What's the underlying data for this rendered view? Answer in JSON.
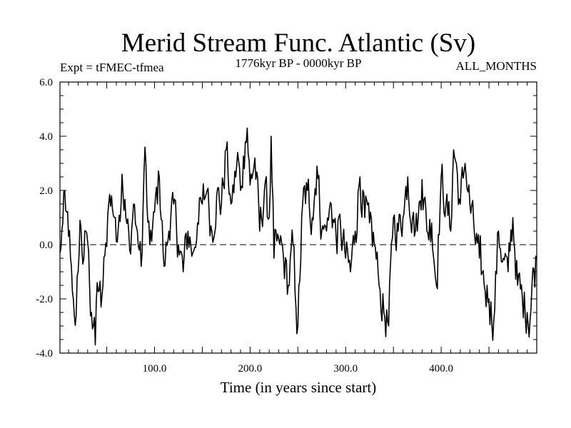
{
  "chart_data": {
    "type": "line",
    "title": "Merid Stream Func. Atlantic (Sv)",
    "left_label": "Expt = tFMEC-tfmea",
    "center_label": "1776kyr BP - 0000kyr BP",
    "right_label": "ALL_MONTHS",
    "xlabel": "Time (in years since start)",
    "ylabel": "",
    "xlim": [
      1,
      500
    ],
    "ylim": [
      -4.0,
      6.0
    ],
    "xticks": [
      100,
      200,
      300,
      400
    ],
    "xtick_labels": [
      "100.0",
      "200.0",
      "300.0",
      "400.0"
    ],
    "yticks": [
      -4,
      -2,
      0,
      2,
      4,
      6
    ],
    "ytick_labels": [
      "-4.0",
      "-2.0",
      "0.0",
      "2.0",
      "4.0",
      "6.0"
    ],
    "reference_line": {
      "y": 0,
      "style": "dashed"
    },
    "series": [
      {
        "name": "Merid Stream Func. Atlantic",
        "anchors_x": [
          1,
          4,
          6,
          8,
          10,
          13,
          15,
          18,
          20,
          22,
          24,
          26,
          28,
          30,
          32,
          34,
          36,
          38,
          40,
          42,
          44,
          46,
          48,
          52,
          55,
          58,
          62,
          66,
          70,
          74,
          78,
          82,
          86,
          90,
          92,
          95,
          100,
          105,
          110,
          115,
          120,
          125,
          130,
          135,
          140,
          145,
          150,
          155,
          160,
          165,
          170,
          175,
          180,
          185,
          187,
          190,
          195,
          197,
          200,
          205,
          210,
          215,
          220,
          222,
          225,
          230,
          235,
          240,
          245,
          248,
          250,
          255,
          260,
          265,
          270,
          275,
          280,
          285,
          290,
          295,
          300,
          305,
          310,
          315,
          320,
          325,
          330,
          335,
          340,
          345,
          350,
          355,
          360,
          365,
          370,
          375,
          380,
          385,
          390,
          395,
          400,
          405,
          410,
          413,
          415,
          420,
          425,
          430,
          435,
          440,
          445,
          450,
          455,
          460,
          465,
          470,
          475,
          480,
          485,
          490,
          493,
          495,
          500
        ],
        "anchors_y": [
          -0.3,
          0.8,
          2.0,
          1.2,
          0.3,
          -0.8,
          -2.0,
          -2.6,
          -1.0,
          0.9,
          -0.2,
          -0.5,
          0.5,
          0.1,
          -1.5,
          -2.5,
          -3.0,
          -3.7,
          -1.4,
          -1.7,
          -2.3,
          -1.5,
          -0.4,
          1.5,
          1.8,
          1.0,
          0.6,
          2.6,
          1.0,
          -0.2,
          1.5,
          0.5,
          -0.8,
          3.6,
          1.5,
          0.0,
          1.2,
          2.5,
          -0.8,
          0.5,
          1.5,
          0.0,
          -1.0,
          0.5,
          -0.3,
          0.8,
          1.5,
          2.0,
          0.5,
          1.8,
          1.5,
          3.5,
          1.5,
          2.5,
          3.4,
          2.0,
          3.8,
          4.3,
          2.2,
          3.2,
          0.5,
          2.0,
          1.0,
          4.0,
          -0.5,
          0.2,
          -0.5,
          -1.5,
          0.0,
          -2.3,
          -3.0,
          1.5,
          2.0,
          1.0,
          2.9,
          0.5,
          0.5,
          1.5,
          0.3,
          0.5,
          -0.5,
          -1.0,
          0.5,
          2.5,
          1.0,
          0.8,
          0.0,
          -1.5,
          -2.5,
          -3.0,
          1.0,
          0.5,
          1.0,
          2.5,
          1.0,
          0.5,
          2.4,
          0.5,
          0.8,
          -1.5,
          2.5,
          1.5,
          0.5,
          3.5,
          3.1,
          1.5,
          3.0,
          1.5,
          0.3,
          -0.5,
          -1.5,
          -2.0,
          -2.8,
          0.5,
          -0.5,
          -1.0,
          1.0,
          -1.5,
          -2.0,
          -2.5,
          -2.8,
          -1.5,
          -0.5
        ],
        "amplitude": 0.75
      }
    ]
  },
  "colors": {
    "line": "#000000",
    "axis": "#000000",
    "background": "#ffffff"
  }
}
